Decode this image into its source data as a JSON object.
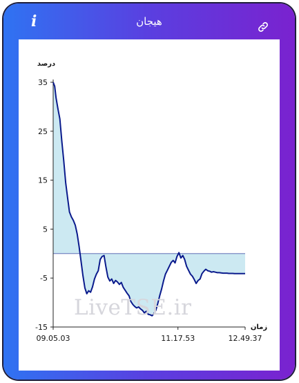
{
  "header": {
    "title": "هیجان",
    "info_icon": "info-icon",
    "link_icon": "link-icon",
    "info_glyph": "i"
  },
  "watermark": "LiveTSE.ir",
  "colors": {
    "line": "#0a1a8c",
    "fill": "#cce9f2",
    "baseline": "#0a1a8c"
  },
  "chart_data": {
    "type": "area",
    "title": "",
    "ylabel": "درصد",
    "xlabel": "زمان",
    "ylim": [
      -15,
      35
    ],
    "yticks": [
      35,
      25,
      15,
      5,
      -5,
      -15
    ],
    "xlim": [
      0,
      100
    ],
    "xticks": [
      {
        "pos": 0,
        "label": "09.05.03"
      },
      {
        "pos": 65,
        "label": "11.17.53"
      },
      {
        "pos": 100,
        "label": "12.49.37"
      }
    ],
    "baseline": 0,
    "grid": false,
    "series": [
      {
        "name": "",
        "x": [
          0,
          0.8,
          1.5,
          2.5,
          3.5,
          4.5,
          5.5,
          6.5,
          7.5,
          8.5,
          9.5,
          10.5,
          11.5,
          12.5,
          13.5,
          14.5,
          15.5,
          16.5,
          17.5,
          18.5,
          19.5,
          20.5,
          21.5,
          22.5,
          23.5,
          24.5,
          25.5,
          26.5,
          27.5,
          28.5,
          29.5,
          30.5,
          31.5,
          32.5,
          33.5,
          34.5,
          35.5,
          36.5,
          37.5,
          38.5,
          39.5,
          40.5,
          41.5,
          42.5,
          43.5,
          44.5,
          45.5,
          46.5,
          47.5,
          48.5,
          49.5,
          50.5,
          51.5,
          52.5,
          53.5,
          54.5,
          55.5,
          56.5,
          57.5,
          58.5,
          59.5,
          60.5,
          61.5,
          62.5,
          63.5,
          64.5,
          65.5,
          66.5,
          67.5,
          68.5,
          69.5,
          70.5,
          71.5,
          72.5,
          73.5,
          74.5,
          75.5,
          76.5,
          77.5,
          78.5,
          79.5,
          80.5,
          81.5,
          82.5,
          83.5,
          84.5,
          85.5,
          86.5,
          87.5,
          88.5,
          89.5,
          90.5,
          91.5,
          92.5,
          93.5,
          94.5,
          95.5,
          96.5,
          97.5,
          98.5,
          99.5,
          100
        ],
        "values": [
          35,
          34.2,
          31.8,
          29.5,
          27.5,
          23,
          19,
          14.5,
          11.5,
          8.5,
          7.5,
          6.8,
          5.8,
          4,
          1.5,
          -1.5,
          -4.5,
          -7,
          -8.2,
          -7.6,
          -7.9,
          -6.8,
          -5.2,
          -4.2,
          -3.5,
          -1.2,
          -0.6,
          -0.4,
          -2.8,
          -4.8,
          -5.6,
          -5.2,
          -6.1,
          -5.5,
          -5.8,
          -6.3,
          -5.9,
          -6.9,
          -7.5,
          -8.1,
          -8.6,
          -9.8,
          -10.4,
          -10.8,
          -11.1,
          -10.9,
          -11.3,
          -11.6,
          -12.1,
          -11.8,
          -12.4,
          -12.5,
          -12.7,
          -12.2,
          -11.6,
          -10.2,
          -8.6,
          -7.2,
          -5.6,
          -4.2,
          -3.4,
          -2.6,
          -1.8,
          -1.4,
          -1.9,
          -0.6,
          0.2,
          -0.9,
          -0.4,
          -1.2,
          -2.6,
          -3.4,
          -4.2,
          -4.6,
          -5.3,
          -6.1,
          -5.5,
          -5.2,
          -4.1,
          -3.6,
          -3.2,
          -3.5,
          -3.6,
          -3.8,
          -3.7,
          -3.8,
          -3.9,
          -3.9,
          -3.95,
          -4.0,
          -4.0,
          -4.0,
          -4.05,
          -4.05,
          -4.05,
          -4.1,
          -4.1,
          -4.1,
          -4.1,
          -4.1,
          -4.1,
          -4.1
        ]
      }
    ]
  }
}
